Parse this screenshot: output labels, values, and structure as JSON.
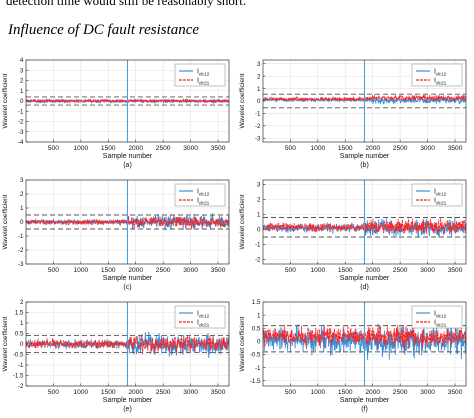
{
  "page": {
    "cut_text": "detection time would still be reasonably short.",
    "section_heading": "Influence of DC fault resistance"
  },
  "colors": {
    "series_1": "#3d8fd6",
    "series_2": "#ff2020",
    "threshold": "#555555",
    "fault_marker": "#4aa0e0"
  },
  "chart_data": [
    {
      "type": "line",
      "panel_label": "(a)",
      "xlabel": "Sample number",
      "ylabel": "Wavelet coefficient",
      "xlim": [
        1,
        3700
      ],
      "xticks": [
        500,
        1000,
        1500,
        2000,
        2500,
        3000,
        3500
      ],
      "ylim": [
        -4,
        4
      ],
      "yticks": [
        -4,
        -3,
        -2,
        -1,
        0,
        1,
        2,
        3,
        4
      ],
      "fault_sample": 1850,
      "thresholds": [
        0.4,
        -0.4
      ],
      "legend": {
        "position": "top-right",
        "entries": [
          "I",
          "I"
        ],
        "subscripts": [
          "dc12",
          "dc21"
        ]
      },
      "series": [
        {
          "amp_pre": 0.13,
          "amp_post": 0.13,
          "offset_pre": 0,
          "offset_post": 0
        },
        {
          "amp_pre": 0.15,
          "amp_post": 0.15,
          "offset_pre": 0,
          "offset_post": 0
        }
      ]
    },
    {
      "type": "line",
      "panel_label": "(b)",
      "xlabel": "Sample number",
      "ylabel": "Wavelet coefficient",
      "xlim": [
        1,
        3700
      ],
      "xticks": [
        500,
        1000,
        1500,
        2000,
        2500,
        3000,
        3500
      ],
      "ylim": [
        -3.3,
        3.3
      ],
      "yticks": [
        -3,
        -2,
        -1,
        0,
        1,
        2,
        3
      ],
      "fault_sample": 1850,
      "thresholds": [
        0.55,
        -0.55
      ],
      "legend": {
        "position": "top-right",
        "entries": [
          "I",
          "I"
        ],
        "subscripts": [
          "dc12",
          "dc21"
        ]
      },
      "series": [
        {
          "amp_pre": 0.12,
          "amp_post": 0.25,
          "offset_pre": 0.1,
          "offset_post": 0.05
        },
        {
          "amp_pre": 0.15,
          "amp_post": 0.2,
          "offset_pre": 0.15,
          "offset_post": 0.25
        }
      ]
    },
    {
      "type": "line",
      "panel_label": "(c)",
      "xlabel": "Sample number",
      "ylabel": "Wavelet coefficient",
      "xlim": [
        1,
        3700
      ],
      "xticks": [
        500,
        1000,
        1500,
        2000,
        2500,
        3000,
        3500
      ],
      "ylim": [
        -3,
        3
      ],
      "yticks": [
        -3,
        -2,
        -1,
        0,
        1,
        2,
        3
      ],
      "fault_sample": 1850,
      "thresholds": [
        0.5,
        -0.5
      ],
      "legend": {
        "position": "top-right",
        "entries": [
          "I",
          "I"
        ],
        "subscripts": [
          "dc12",
          "dc21"
        ]
      },
      "series": [
        {
          "amp_pre": 0.15,
          "amp_post": 0.45,
          "offset_pre": 0,
          "offset_post": 0
        },
        {
          "amp_pre": 0.18,
          "amp_post": 0.35,
          "offset_pre": 0,
          "offset_post": 0
        }
      ]
    },
    {
      "type": "line",
      "panel_label": "(d)",
      "xlabel": "Sample number",
      "ylabel": "Wavelet coefficient",
      "xlim": [
        1,
        3700
      ],
      "xticks": [
        500,
        1000,
        1500,
        2000,
        2500,
        3000,
        3500
      ],
      "ylim": [
        -2.3,
        3.3
      ],
      "yticks": [
        -2,
        -1,
        0,
        1,
        2,
        3
      ],
      "fault_sample": 1850,
      "thresholds": [
        0.8,
        -0.5
      ],
      "legend": {
        "position": "top-right",
        "entries": [
          "I",
          "I"
        ],
        "subscripts": [
          "dc12",
          "dc21"
        ]
      },
      "series": [
        {
          "amp_pre": 0.25,
          "amp_post": 0.5,
          "offset_pre": 0.1,
          "offset_post": 0.1
        },
        {
          "amp_pre": 0.25,
          "amp_post": 0.45,
          "offset_pre": 0.15,
          "offset_post": 0.2
        }
      ]
    },
    {
      "type": "line",
      "panel_label": "(e)",
      "xlabel": "Sample number",
      "ylabel": "Wavelet coefficient",
      "xlim": [
        1,
        3700
      ],
      "xticks": [
        500,
        1000,
        1500,
        2000,
        2500,
        3000,
        3500
      ],
      "ylim": [
        -2,
        2
      ],
      "yticks": [
        -2,
        -1.5,
        -1,
        -0.5,
        0,
        0.5,
        1,
        1.5,
        2
      ],
      "fault_sample": 1850,
      "thresholds": [
        0.4,
        -0.4
      ],
      "legend": {
        "position": "top-right",
        "entries": [
          "I",
          "I"
        ],
        "subscripts": [
          "dc12",
          "dc21"
        ]
      },
      "series": [
        {
          "amp_pre": 0.18,
          "amp_post": 0.45,
          "offset_pre": 0,
          "offset_post": 0
        },
        {
          "amp_pre": 0.2,
          "amp_post": 0.35,
          "offset_pre": 0,
          "offset_post": 0
        }
      ]
    },
    {
      "type": "line",
      "panel_label": "(f)",
      "xlabel": "Sample number",
      "ylabel": "Wavelet coefficient",
      "xlim": [
        1,
        3700
      ],
      "xticks": [
        500,
        1000,
        1500,
        2000,
        2500,
        3000,
        3500
      ],
      "ylim": [
        -1.7,
        1.5
      ],
      "yticks": [
        -1.5,
        -1,
        -0.5,
        0,
        0.5,
        1,
        1.5
      ],
      "fault_sample": 1850,
      "thresholds": [
        0.6,
        -0.4
      ],
      "legend": {
        "position": "top-right",
        "entries": [
          "I",
          "I"
        ],
        "subscripts": [
          "dc12",
          "dc21"
        ]
      },
      "series": [
        {
          "amp_pre": 0.45,
          "amp_post": 0.5,
          "offset_pre": 0.05,
          "offset_post": 0
        },
        {
          "amp_pre": 0.3,
          "amp_post": 0.35,
          "offset_pre": 0.2,
          "offset_post": 0.15
        }
      ]
    }
  ]
}
